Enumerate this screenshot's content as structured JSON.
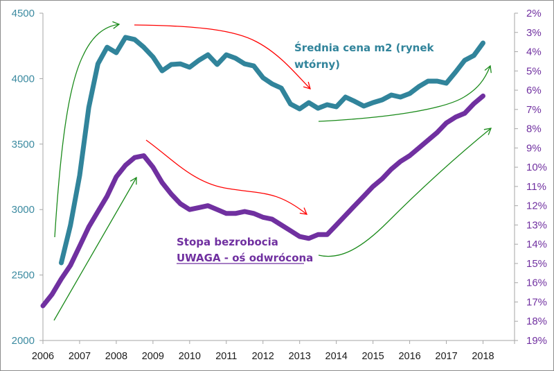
{
  "chart_data": {
    "type": "line",
    "title": "",
    "xlabel": "",
    "x_ticks": [
      "2006",
      "2007",
      "2008",
      "2009",
      "2010",
      "2011",
      "2012",
      "2013",
      "2014",
      "2015",
      "2016",
      "2017",
      "2018"
    ],
    "xlim": [
      2006,
      2018.9
    ],
    "left_axis": {
      "label": "",
      "ylim": [
        2000,
        4500
      ],
      "ticks": [
        "2000",
        "2500",
        "3000",
        "3500",
        "4000",
        "4500"
      ],
      "color": "#4a9bb0"
    },
    "right_axis": {
      "label": "",
      "ylim": [
        2,
        19
      ],
      "inverted": true,
      "ticks": [
        "2%",
        "3%",
        "4%",
        "5%",
        "6%",
        "7%",
        "8%",
        "9%",
        "10%",
        "11%",
        "12%",
        "13%",
        "14%",
        "15%",
        "16%",
        "17%",
        "18%",
        "19%"
      ],
      "color": "#7030a0"
    },
    "grid": false,
    "series": [
      {
        "name": "Średnia cena m2 (rynek wtórny)",
        "axis": "left",
        "color": "#31849b",
        "x": [
          2006.5,
          2006.75,
          2007,
          2007.25,
          2007.5,
          2007.75,
          2008,
          2008.25,
          2008.5,
          2008.75,
          2009,
          2009.25,
          2009.5,
          2009.75,
          2010,
          2010.25,
          2010.5,
          2010.75,
          2011,
          2011.25,
          2011.5,
          2011.75,
          2012,
          2012.25,
          2012.5,
          2012.75,
          2013,
          2013.25,
          2013.5,
          2013.75,
          2014,
          2014.25,
          2014.5,
          2014.75,
          2015,
          2015.25,
          2015.5,
          2015.75,
          2016,
          2016.25,
          2016.5,
          2016.75,
          2017,
          2017.25,
          2017.5,
          2017.75,
          2018
        ],
        "values": [
          2593,
          2879,
          3260,
          3780,
          4113,
          4240,
          4198,
          4315,
          4299,
          4240,
          4166,
          4060,
          4108,
          4113,
          4087,
          4140,
          4182,
          4108,
          4182,
          4156,
          4113,
          4097,
          4007,
          3960,
          3928,
          3806,
          3769,
          3817,
          3774,
          3801,
          3785,
          3859,
          3827,
          3790,
          3817,
          3838,
          3875,
          3859,
          3886,
          3939,
          3981,
          3981,
          3965,
          4050,
          4140,
          4177,
          4272
        ]
      },
      {
        "name": "Stopa bezrobocia",
        "axis": "right",
        "color": "#7030a0",
        "unit": "%",
        "x": [
          2006,
          2006.25,
          2006.5,
          2006.75,
          2007,
          2007.25,
          2007.5,
          2007.75,
          2008,
          2008.25,
          2008.5,
          2008.75,
          2009,
          2009.25,
          2009.5,
          2009.75,
          2010,
          2010.25,
          2010.5,
          2010.75,
          2011,
          2011.25,
          2011.5,
          2011.75,
          2012,
          2012.25,
          2012.5,
          2012.75,
          2013,
          2013.25,
          2013.5,
          2013.75,
          2014,
          2014.25,
          2014.5,
          2014.75,
          2015,
          2015.25,
          2015.5,
          2015.75,
          2016,
          2016.25,
          2016.5,
          2016.75,
          2017,
          2017.25,
          2017.5,
          2017.75,
          2018
        ],
        "values": [
          17.2,
          16.6,
          15.8,
          15.1,
          14.1,
          13.1,
          12.3,
          11.5,
          10.5,
          9.9,
          9.5,
          9.4,
          10.0,
          10.8,
          11.4,
          11.9,
          12.2,
          12.1,
          12.0,
          12.2,
          12.4,
          12.4,
          12.3,
          12.4,
          12.6,
          12.7,
          13.0,
          13.3,
          13.6,
          13.7,
          13.5,
          13.5,
          13.0,
          12.5,
          12.0,
          11.5,
          11.0,
          10.6,
          10.1,
          9.7,
          9.4,
          9.0,
          8.6,
          8.2,
          7.7,
          7.4,
          7.2,
          6.7,
          6.3
        ]
      }
    ],
    "annotations": {
      "price_label_line1": "Średnia cena m2 (rynek",
      "price_label_line2": "wtórny)",
      "unemp_label_line1": "Stopa bezrobocia",
      "unemp_label_line2": "UWAGA - oś odwrócona"
    },
    "trend_arrows": [
      {
        "name": "price-rise-2006-2008",
        "color": "#1a8a1a",
        "direction": "up"
      },
      {
        "name": "price-fall-2008-2013",
        "color": "#ff0000",
        "direction": "down"
      },
      {
        "name": "price-rise-2013-2018",
        "color": "#1a8a1a",
        "direction": "up"
      },
      {
        "name": "unemp-rise-2006-2008",
        "color": "#1a8a1a",
        "direction": "up"
      },
      {
        "name": "unemp-fall-2008-2013",
        "color": "#ff0000",
        "direction": "down"
      },
      {
        "name": "unemp-rise-2013-2018",
        "color": "#1a8a1a",
        "direction": "up"
      }
    ],
    "legend": "none"
  }
}
